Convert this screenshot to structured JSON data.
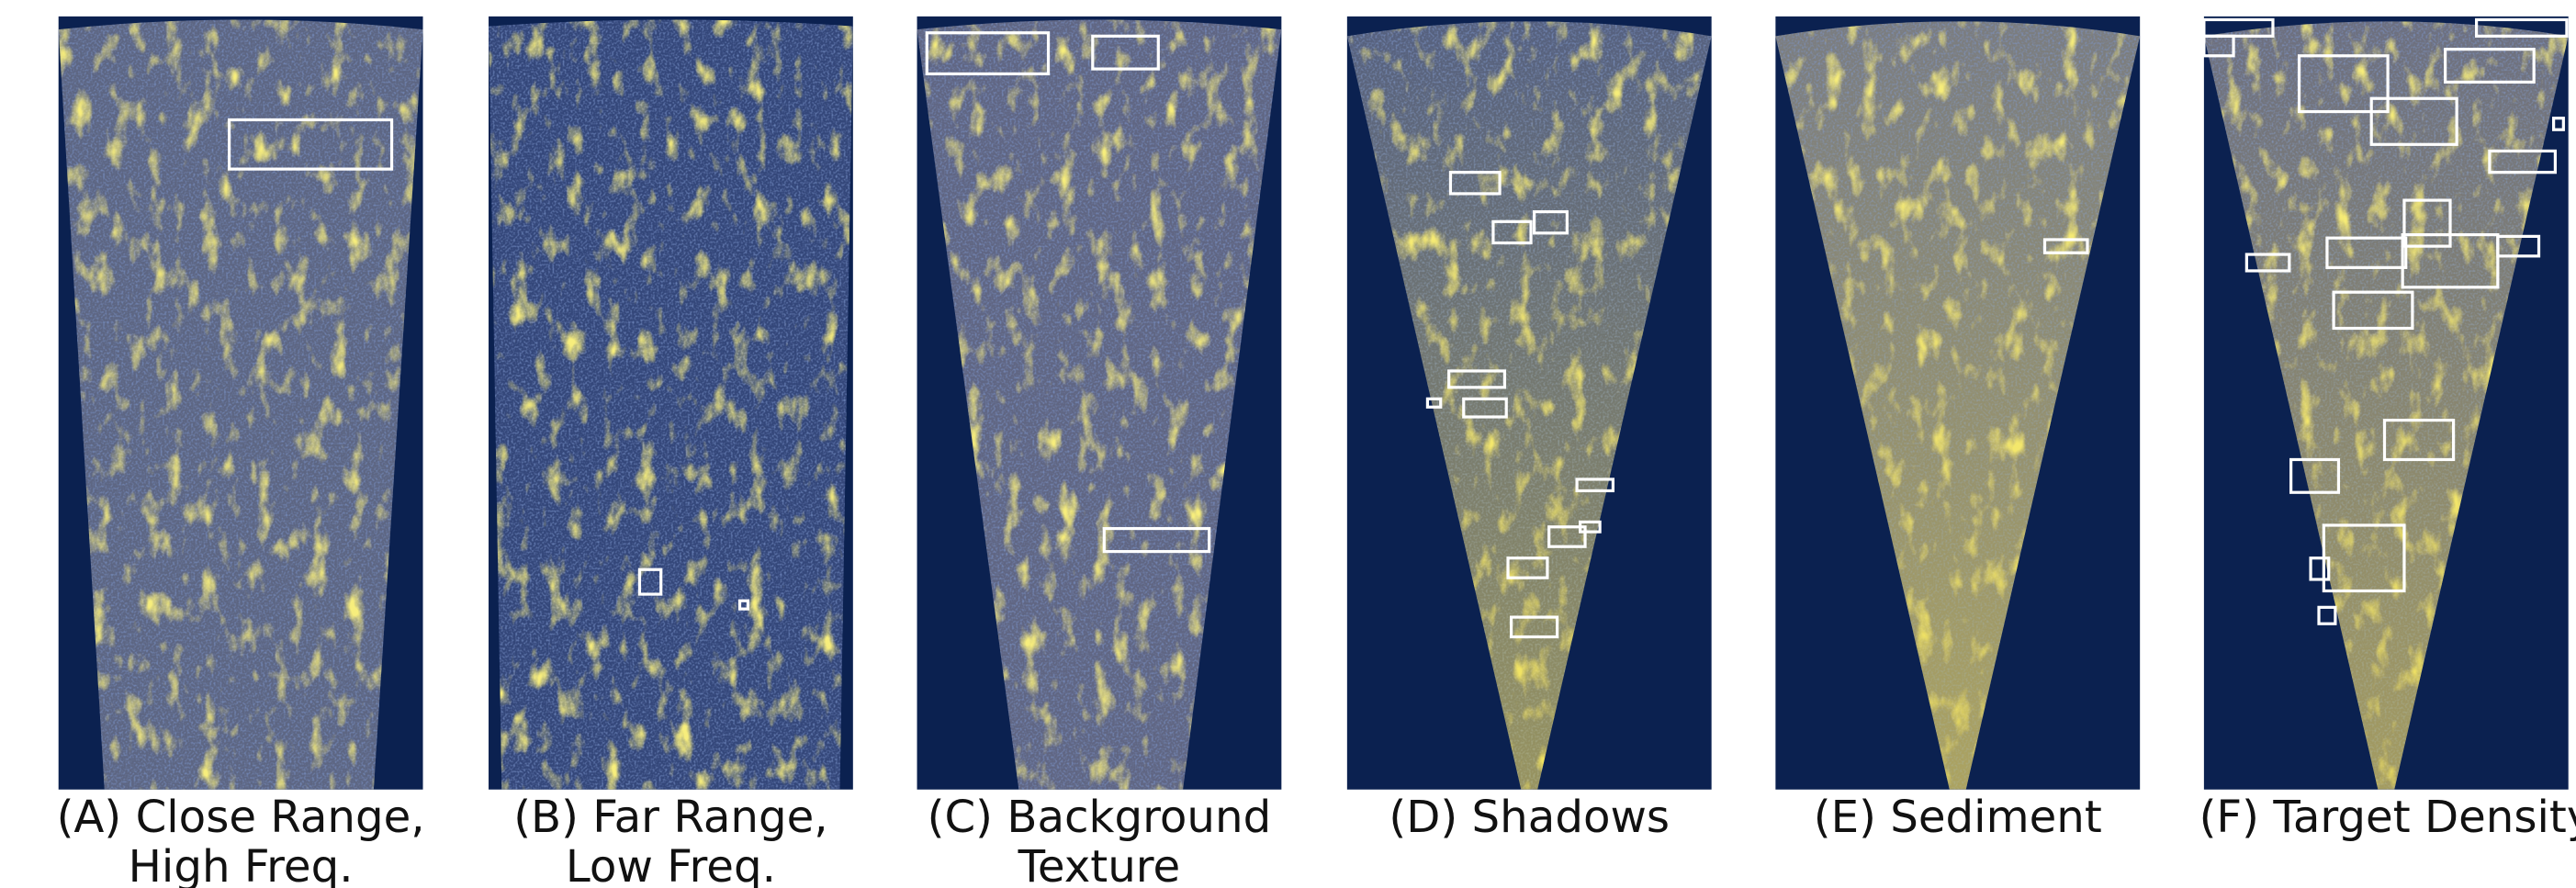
{
  "panels": [
    {
      "caption": [
        "(A) Close Range,",
        "High Freq."
      ]
    },
    {
      "caption": [
        "(B) Far Range,",
        "Low Freq."
      ]
    },
    {
      "caption": [
        "(C) Background",
        "Texture"
      ]
    },
    {
      "caption": [
        "(D) Shadows"
      ]
    },
    {
      "caption": [
        "(E) Sediment"
      ]
    },
    {
      "caption": [
        "(F) Target Density"
      ]
    }
  ]
}
